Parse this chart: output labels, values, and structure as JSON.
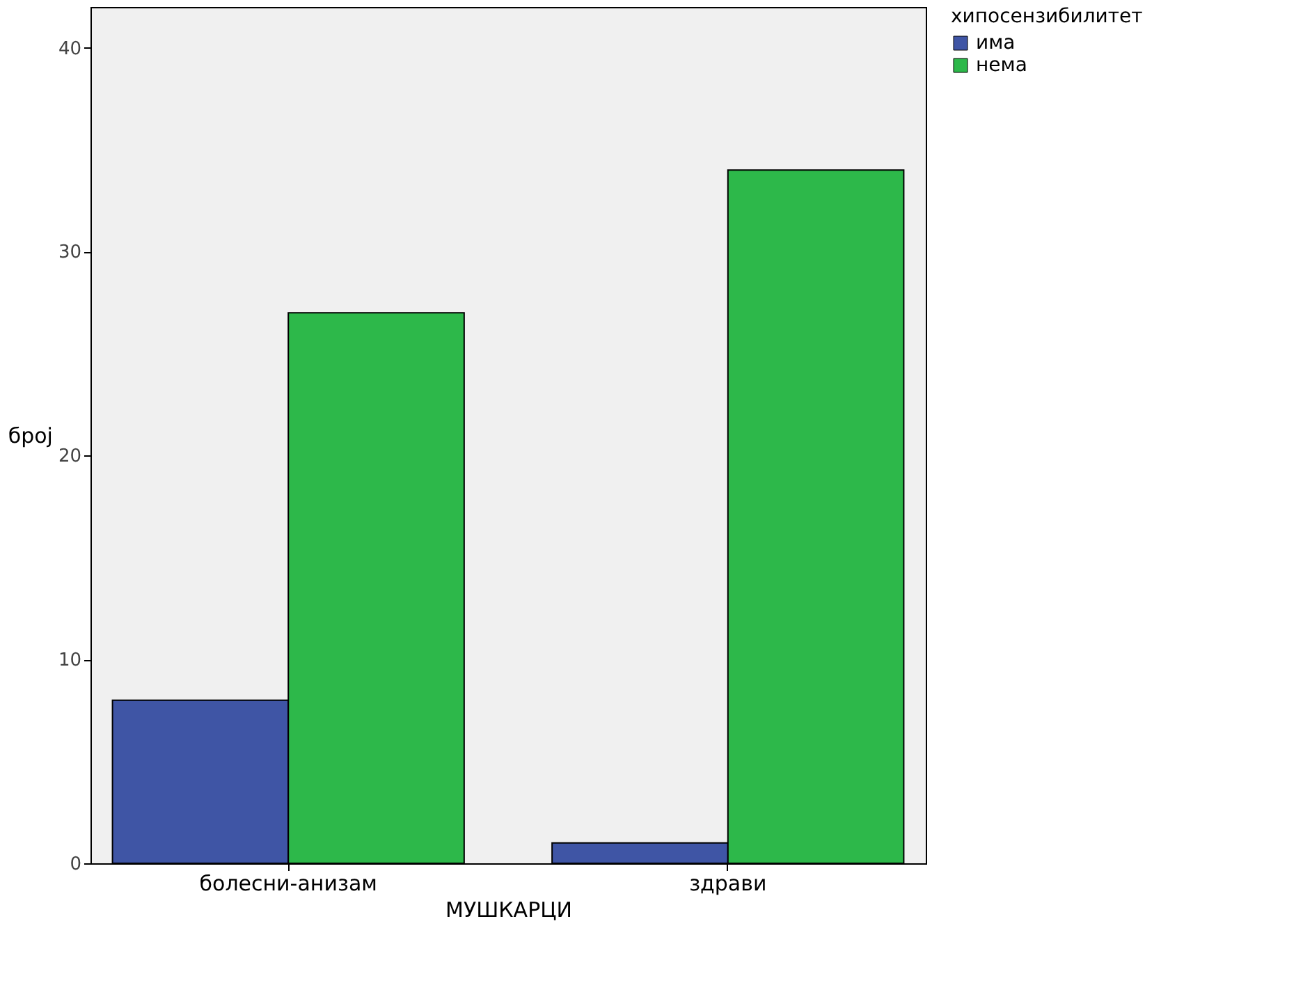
{
  "chart_data": {
    "type": "bar",
    "categories": [
      "болесни-анизам",
      "здрави"
    ],
    "series": [
      {
        "name": "има",
        "color": "#3f55a5",
        "values": [
          8,
          1
        ]
      },
      {
        "name": "нема",
        "color": "#2db84a",
        "values": [
          27,
          34
        ]
      }
    ],
    "xlabel": "МУШКАРЦИ",
    "ylabel": "број",
    "legend_title": "хипосензибилитет",
    "ylim": [
      0,
      42
    ],
    "yticks": [
      0,
      10,
      20,
      30,
      40
    ],
    "grid": false,
    "legend": "top right"
  }
}
